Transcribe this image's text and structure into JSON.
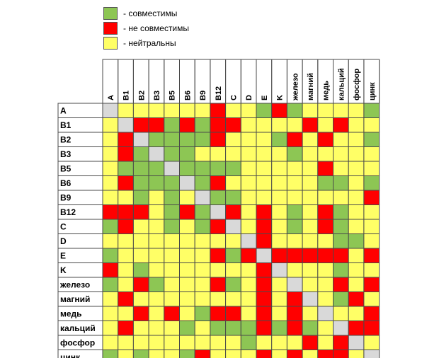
{
  "legend": [
    {
      "label": "- совместимы",
      "color": "#8dc654"
    },
    {
      "label": "- не совместимы",
      "color": "#ff0000"
    },
    {
      "label": "- нейтральны",
      "color": "#ffff66"
    }
  ],
  "chart_data": {
    "type": "heatmap",
    "title": "",
    "labels": [
      "A",
      "B1",
      "B2",
      "B3",
      "B5",
      "B6",
      "B9",
      "B12",
      "C",
      "D",
      "E",
      "K",
      "железо",
      "магний",
      "медь",
      "кальций",
      "фосфор",
      "цинк"
    ],
    "legend_codes": {
      "g": "совместимы",
      "r": "не совместимы",
      "y": "нейтральны",
      "x": "—"
    },
    "colors": {
      "g": "#8dc654",
      "r": "#ff0000",
      "y": "#ffff66",
      "x": "#d9d9d9"
    },
    "matrix": [
      [
        "x",
        "y",
        "y",
        "y",
        "y",
        "y",
        "y",
        "r",
        "y",
        "y",
        "g",
        "r",
        "g",
        "y",
        "y",
        "y",
        "y",
        "g"
      ],
      [
        "y",
        "x",
        "r",
        "r",
        "g",
        "r",
        "g",
        "r",
        "r",
        "y",
        "y",
        "y",
        "y",
        "r",
        "y",
        "r",
        "y",
        "y"
      ],
      [
        "y",
        "r",
        "x",
        "g",
        "g",
        "g",
        "g",
        "r",
        "y",
        "y",
        "y",
        "g",
        "r",
        "y",
        "r",
        "y",
        "y",
        "g"
      ],
      [
        "y",
        "r",
        "g",
        "x",
        "g",
        "g",
        "y",
        "y",
        "y",
        "y",
        "y",
        "y",
        "g",
        "y",
        "y",
        "y",
        "y",
        "y"
      ],
      [
        "y",
        "g",
        "g",
        "g",
        "x",
        "g",
        "g",
        "g",
        "g",
        "y",
        "y",
        "y",
        "y",
        "y",
        "r",
        "y",
        "y",
        "y"
      ],
      [
        "y",
        "r",
        "g",
        "g",
        "g",
        "x",
        "g",
        "r",
        "y",
        "y",
        "y",
        "y",
        "y",
        "y",
        "g",
        "g",
        "y",
        "g"
      ],
      [
        "y",
        "y",
        "g",
        "y",
        "g",
        "y",
        "x",
        "g",
        "g",
        "y",
        "y",
        "y",
        "y",
        "y",
        "y",
        "y",
        "y",
        "r"
      ],
      [
        "r",
        "r",
        "r",
        "y",
        "g",
        "r",
        "g",
        "x",
        "r",
        "y",
        "r",
        "y",
        "g",
        "y",
        "r",
        "g",
        "y",
        "y"
      ],
      [
        "g",
        "r",
        "y",
        "y",
        "g",
        "y",
        "g",
        "r",
        "x",
        "y",
        "r",
        "y",
        "g",
        "y",
        "r",
        "g",
        "y",
        "y"
      ],
      [
        "y",
        "y",
        "y",
        "y",
        "y",
        "y",
        "y",
        "y",
        "y",
        "x",
        "r",
        "y",
        "y",
        "y",
        "y",
        "g",
        "g",
        "y"
      ],
      [
        "g",
        "y",
        "y",
        "y",
        "y",
        "y",
        "y",
        "r",
        "g",
        "r",
        "x",
        "r",
        "r",
        "r",
        "r",
        "r",
        "y",
        "r"
      ],
      [
        "r",
        "y",
        "g",
        "y",
        "y",
        "y",
        "y",
        "y",
        "y",
        "y",
        "r",
        "x",
        "y",
        "y",
        "y",
        "g",
        "y",
        "y"
      ],
      [
        "g",
        "y",
        "r",
        "g",
        "y",
        "y",
        "y",
        "r",
        "g",
        "y",
        "r",
        "y",
        "x",
        "y",
        "y",
        "r",
        "y",
        "r"
      ],
      [
        "y",
        "r",
        "y",
        "y",
        "y",
        "y",
        "y",
        "y",
        "y",
        "y",
        "r",
        "y",
        "r",
        "x",
        "y",
        "g",
        "r",
        "y"
      ],
      [
        "y",
        "y",
        "r",
        "y",
        "r",
        "y",
        "g",
        "r",
        "r",
        "y",
        "r",
        "y",
        "r",
        "y",
        "x",
        "y",
        "y",
        "r"
      ],
      [
        "y",
        "r",
        "y",
        "y",
        "y",
        "g",
        "y",
        "g",
        "g",
        "g",
        "r",
        "g",
        "r",
        "g",
        "y",
        "x",
        "r",
        "r"
      ],
      [
        "y",
        "y",
        "y",
        "y",
        "y",
        "y",
        "y",
        "y",
        "y",
        "g",
        "y",
        "y",
        "y",
        "r",
        "y",
        "r",
        "x",
        "y"
      ],
      [
        "g",
        "y",
        "g",
        "y",
        "y",
        "g",
        "r",
        "y",
        "y",
        "y",
        "r",
        "y",
        "r",
        "y",
        "r",
        "r",
        "y",
        "x"
      ]
    ]
  }
}
